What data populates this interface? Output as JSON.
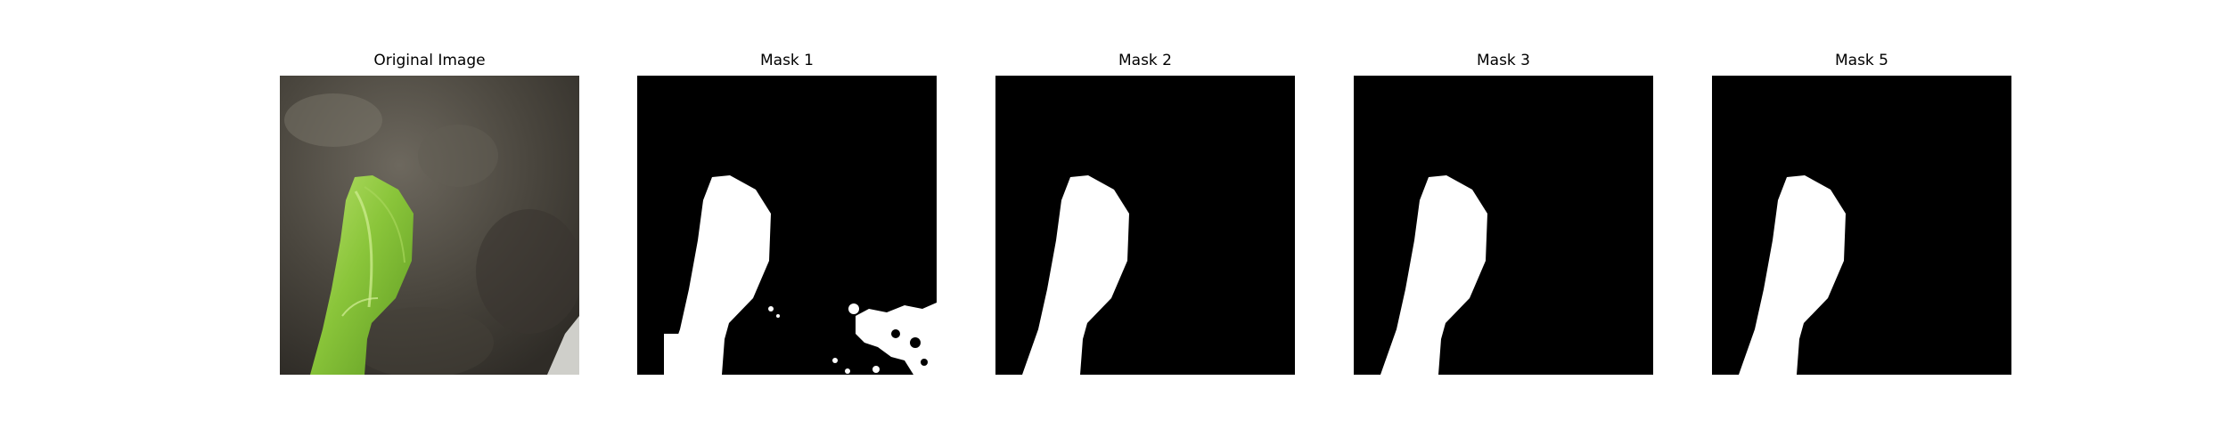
{
  "figure": {
    "background": "#ffffff",
    "panels": [
      {
        "title": "Original Image",
        "kind": "photo",
        "colors": {
          "background": "#4a463e",
          "leaf": "#8ac53a",
          "leaf_highlight": "#b7e06a"
        }
      },
      {
        "title": "Mask 1",
        "kind": "mask",
        "noise": true,
        "colors": {
          "background": "#000000",
          "foreground": "#ffffff"
        }
      },
      {
        "title": "Mask 2",
        "kind": "mask",
        "noise": false,
        "colors": {
          "background": "#000000",
          "foreground": "#ffffff"
        }
      },
      {
        "title": "Mask 3",
        "kind": "mask",
        "noise": false,
        "colors": {
          "background": "#000000",
          "foreground": "#ffffff"
        }
      },
      {
        "title": "Mask 5",
        "kind": "mask",
        "noise": false,
        "colors": {
          "background": "#000000",
          "foreground": "#ffffff"
        }
      }
    ]
  }
}
